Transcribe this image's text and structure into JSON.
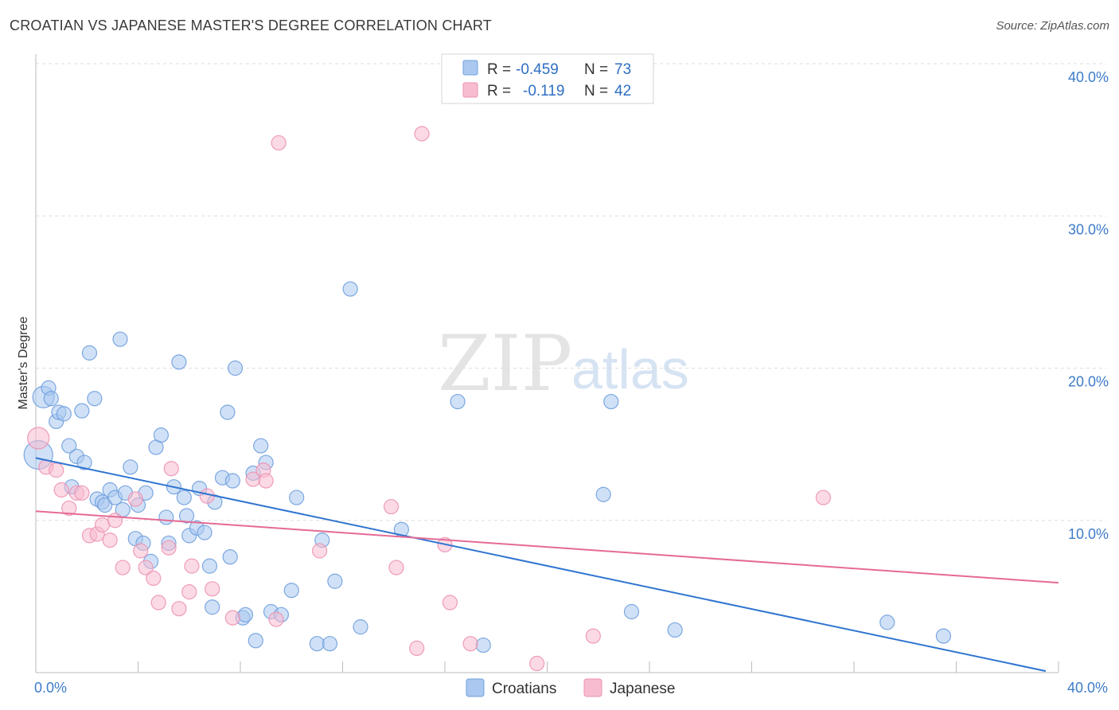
{
  "header": {
    "title": "CROATIAN VS JAPANESE MASTER'S DEGREE CORRELATION CHART",
    "source": "Source: ZipAtlas.com"
  },
  "watermark": {
    "zip": "ZIP",
    "atlas": "atlas"
  },
  "chart_data": {
    "type": "scatter",
    "title": "CROATIAN VS JAPANESE MASTER'S DEGREE CORRELATION CHART",
    "xlabel": "",
    "ylabel": "Master's Degree",
    "xlim": [
      0,
      40
    ],
    "ylim": [
      0,
      40
    ],
    "y_ticks": [
      10,
      20,
      30,
      40
    ],
    "y_tick_labels": [
      "10.0%",
      "20.0%",
      "30.0%",
      "40.0%"
    ],
    "x_tick_labels": [
      "0.0%",
      "40.0%"
    ],
    "grid": true,
    "legend": {
      "placement": "top-center",
      "entries": [
        {
          "r_label": "R = ",
          "r_value": "-0.459",
          "n_label": "N = ",
          "n_value": "73"
        },
        {
          "r_label": "R = ",
          "r_value": "-0.119",
          "n_label": "N = ",
          "n_value": "42"
        }
      ]
    },
    "bottom_legend": [
      "Croatians",
      "Japanese"
    ],
    "colors": {
      "croatians_fill": "#aac8f0",
      "croatians_stroke": "#6f9fdd",
      "croatians_line": "#2f74d0",
      "japanese_fill": "#f7bcd0",
      "japanese_stroke": "#ec92b2",
      "japanese_line": "#e56a95",
      "grid": "#dddddd",
      "axis": "#bbbbbb"
    },
    "series": [
      {
        "name": "Croatians",
        "trend": {
          "x": [
            0,
            39.5
          ],
          "y": [
            14.1,
            0.1
          ]
        },
        "points": [
          [
            0.1,
            14.3,
            2
          ],
          [
            0.3,
            18.1,
            1.5
          ],
          [
            0.5,
            18.7,
            1
          ],
          [
            0.6,
            18.0,
            1
          ],
          [
            0.8,
            16.5,
            1
          ],
          [
            0.9,
            17.1,
            1
          ],
          [
            1.1,
            17.0,
            1
          ],
          [
            1.3,
            14.9,
            1
          ],
          [
            1.4,
            12.2,
            1
          ],
          [
            1.6,
            14.2,
            1
          ],
          [
            1.8,
            17.2,
            1
          ],
          [
            1.9,
            13.8,
            1
          ],
          [
            2.1,
            21.0,
            1
          ],
          [
            2.3,
            18.0,
            1
          ],
          [
            2.4,
            11.4,
            1
          ],
          [
            2.6,
            11.2,
            1
          ],
          [
            2.7,
            11.0,
            1
          ],
          [
            2.9,
            12.0,
            1
          ],
          [
            3.1,
            11.5,
            1
          ],
          [
            3.3,
            21.9,
            1
          ],
          [
            3.4,
            10.7,
            1
          ],
          [
            3.5,
            11.8,
            1
          ],
          [
            3.7,
            13.5,
            1
          ],
          [
            3.9,
            8.8,
            1
          ],
          [
            4.0,
            11.0,
            1
          ],
          [
            4.2,
            8.5,
            1
          ],
          [
            4.3,
            11.8,
            1
          ],
          [
            4.5,
            7.3,
            1
          ],
          [
            4.7,
            14.8,
            1
          ],
          [
            4.9,
            15.6,
            1
          ],
          [
            5.1,
            10.2,
            1
          ],
          [
            5.2,
            8.5,
            1
          ],
          [
            5.4,
            12.2,
            1
          ],
          [
            5.6,
            20.4,
            1
          ],
          [
            5.8,
            11.5,
            1
          ],
          [
            5.9,
            10.3,
            1
          ],
          [
            6.0,
            9.0,
            1
          ],
          [
            6.3,
            9.5,
            1
          ],
          [
            6.4,
            12.1,
            1
          ],
          [
            6.6,
            9.2,
            1
          ],
          [
            6.8,
            7.0,
            1
          ],
          [
            6.9,
            4.3,
            1
          ],
          [
            7.0,
            11.2,
            1
          ],
          [
            7.3,
            12.8,
            1
          ],
          [
            7.5,
            17.1,
            1
          ],
          [
            7.6,
            7.6,
            1
          ],
          [
            7.7,
            12.6,
            1
          ],
          [
            7.8,
            20.0,
            1
          ],
          [
            8.1,
            3.6,
            1
          ],
          [
            8.2,
            3.8,
            1
          ],
          [
            8.5,
            13.1,
            1
          ],
          [
            8.6,
            2.1,
            1
          ],
          [
            8.8,
            14.9,
            1
          ],
          [
            9.0,
            13.8,
            1
          ],
          [
            9.2,
            4.0,
            1
          ],
          [
            9.6,
            3.8,
            1
          ],
          [
            10.0,
            5.4,
            1
          ],
          [
            10.2,
            11.5,
            1
          ],
          [
            11.0,
            1.9,
            1
          ],
          [
            11.2,
            8.7,
            1
          ],
          [
            11.5,
            1.9,
            1
          ],
          [
            11.7,
            6.0,
            1
          ],
          [
            12.3,
            25.2,
            1
          ],
          [
            12.7,
            3.0,
            1
          ],
          [
            14.3,
            9.4,
            1
          ],
          [
            16.5,
            17.8,
            1
          ],
          [
            17.5,
            1.8,
            1
          ],
          [
            22.2,
            11.7,
            1
          ],
          [
            22.5,
            17.8,
            1
          ],
          [
            23.3,
            4.0,
            1
          ],
          [
            25.0,
            2.8,
            1
          ],
          [
            33.3,
            3.3,
            1
          ],
          [
            35.5,
            2.4,
            1
          ]
        ]
      },
      {
        "name": "Japanese",
        "trend": {
          "x": [
            0,
            40
          ],
          "y": [
            10.6,
            5.9
          ]
        },
        "points": [
          [
            0.1,
            15.4,
            1.5
          ],
          [
            0.4,
            13.5,
            1
          ],
          [
            0.8,
            13.3,
            1
          ],
          [
            1.0,
            12.0,
            1
          ],
          [
            1.3,
            10.8,
            1
          ],
          [
            1.6,
            11.8,
            1
          ],
          [
            1.8,
            11.8,
            1
          ],
          [
            2.1,
            9.0,
            1
          ],
          [
            2.4,
            9.1,
            1
          ],
          [
            2.6,
            9.7,
            1
          ],
          [
            2.9,
            8.7,
            1
          ],
          [
            3.1,
            10.0,
            1
          ],
          [
            3.4,
            6.9,
            1
          ],
          [
            3.9,
            11.4,
            1
          ],
          [
            4.1,
            8.0,
            1
          ],
          [
            4.3,
            6.9,
            1
          ],
          [
            4.6,
            6.2,
            1
          ],
          [
            4.8,
            4.6,
            1
          ],
          [
            5.2,
            8.2,
            1
          ],
          [
            5.3,
            13.4,
            1
          ],
          [
            5.6,
            4.2,
            1
          ],
          [
            6.0,
            5.3,
            1
          ],
          [
            6.1,
            7.0,
            1
          ],
          [
            6.7,
            11.6,
            1
          ],
          [
            6.9,
            5.5,
            1
          ],
          [
            7.7,
            3.6,
            1
          ],
          [
            8.5,
            12.7,
            1
          ],
          [
            8.9,
            13.3,
            1
          ],
          [
            9.0,
            12.6,
            1
          ],
          [
            9.4,
            3.5,
            1
          ],
          [
            9.5,
            34.8,
            1
          ],
          [
            11.1,
            8.0,
            1
          ],
          [
            13.9,
            10.9,
            1
          ],
          [
            14.1,
            6.9,
            1
          ],
          [
            14.9,
            1.6,
            1
          ],
          [
            15.1,
            35.4,
            1
          ],
          [
            16.0,
            8.4,
            1
          ],
          [
            16.2,
            4.6,
            1
          ],
          [
            17.0,
            1.9,
            1
          ],
          [
            19.6,
            0.6,
            1
          ],
          [
            21.8,
            2.4,
            1
          ],
          [
            30.8,
            11.5,
            1
          ]
        ]
      }
    ]
  }
}
